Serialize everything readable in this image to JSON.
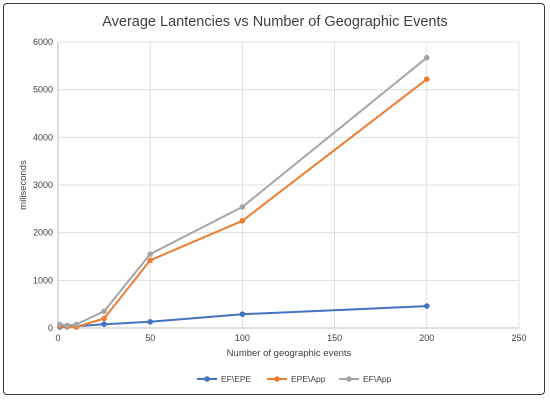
{
  "chart_data": {
    "type": "line",
    "title": "Average Lantencies vs Number of Geographic Events",
    "xlabel": "Number of geographic events",
    "ylabel": "miliseconds",
    "xlim": [
      0,
      250
    ],
    "ylim": [
      0,
      6000
    ],
    "xticks": [
      "0",
      "50",
      "100",
      "150",
      "200",
      "250"
    ],
    "yticks": [
      "0",
      "1000",
      "2000",
      "3000",
      "4000",
      "5000",
      "6000"
    ],
    "grid": true,
    "legend_position": "bottom",
    "series": [
      {
        "name": "EF\\EPE",
        "color": "#4472c4",
        "x": [
          1,
          5,
          10,
          25,
          50,
          100,
          200
        ],
        "y": [
          20,
          25,
          35,
          80,
          130,
          290,
          460
        ]
      },
      {
        "name": "EPE\\App",
        "color": "#ed7d31",
        "x": [
          1,
          5,
          10,
          25,
          50,
          100,
          200
        ],
        "y": [
          40,
          30,
          20,
          200,
          1420,
          2250,
          5220
        ]
      },
      {
        "name": "EF\\App",
        "color": "#a5a5a5",
        "x": [
          1,
          5,
          10,
          25,
          50,
          100,
          200
        ],
        "y": [
          75,
          55,
          75,
          350,
          1550,
          2540,
          5670
        ]
      }
    ]
  }
}
